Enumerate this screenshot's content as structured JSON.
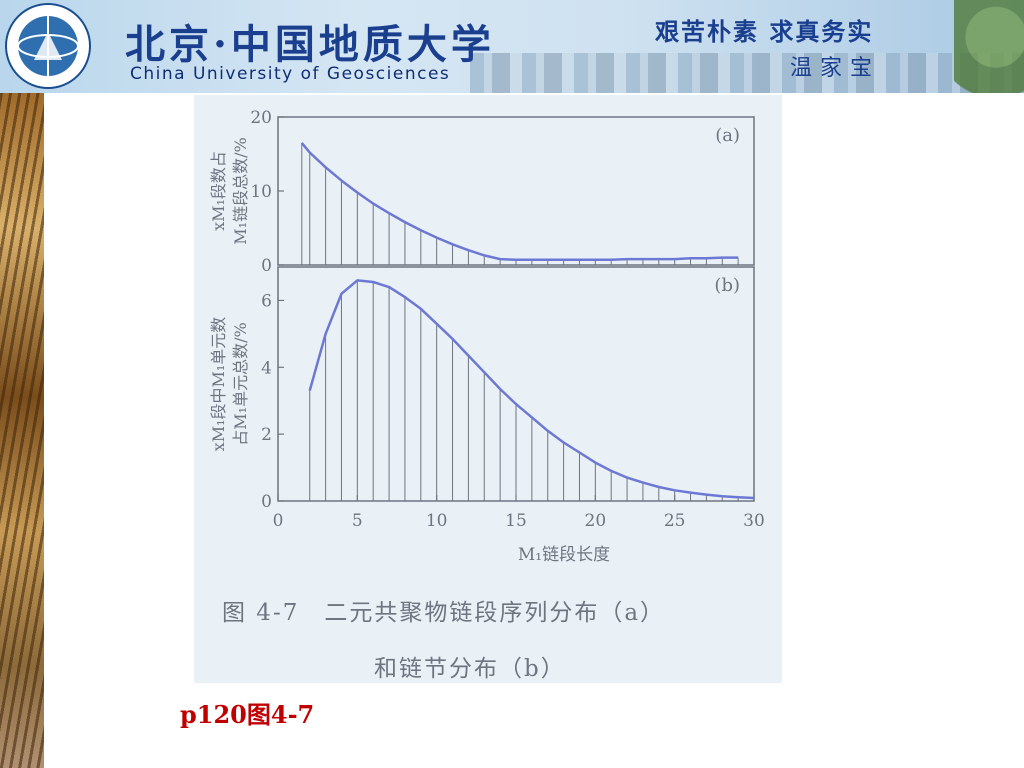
{
  "header": {
    "university_cn": "北京·中国地质大学",
    "university_en": "China University of Geosciences",
    "motto": "艰苦朴素 求真务实",
    "motto_sign": "温家宝"
  },
  "caption": {
    "line1": "图 4-7　二元共聚物链段序列分布（a）",
    "line2": "和链节分布（b）"
  },
  "page_ref": "p120图4-7",
  "colors": {
    "curve": "#6c78d4",
    "axis": "#6e7480",
    "text": "#6e7480",
    "panel_bg": "#e9f1f6",
    "page_ref": "#c00000"
  },
  "chart_data": [
    {
      "type": "area",
      "panel_label": "(a)",
      "ylabel_line1": "xM₁段数占",
      "ylabel_line2": "M₁链段总数/%",
      "ylim": [
        0,
        20
      ],
      "yticks": [
        0,
        10,
        20
      ],
      "xlim": [
        0,
        30
      ],
      "x": [
        1.5,
        2,
        3,
        4,
        5,
        6,
        7,
        8,
        9,
        10,
        11,
        12,
        13,
        14,
        15,
        16,
        17,
        18,
        19,
        20,
        21,
        22,
        23,
        24,
        25,
        26,
        27,
        28,
        29
      ],
      "y": [
        16.5,
        15.2,
        13.2,
        11.4,
        9.8,
        8.3,
        7.0,
        5.8,
        4.7,
        3.7,
        2.8,
        2.0,
        1.3,
        0.8,
        0.7,
        0.7,
        0.7,
        0.7,
        0.7,
        0.7,
        0.7,
        0.8,
        0.8,
        0.8,
        0.8,
        0.9,
        0.9,
        1.0,
        1.0
      ]
    },
    {
      "type": "area",
      "panel_label": "(b)",
      "ylabel_line1": "xM₁段中M₁单元数",
      "ylabel_line2": "占M₁单元总数/%",
      "ylim": [
        0,
        7
      ],
      "yticks": [
        0,
        2,
        4,
        6
      ],
      "xlabel": "M₁链段长度",
      "xticks": [
        0,
        5,
        10,
        15,
        20,
        25,
        30
      ],
      "xlim": [
        0,
        30
      ],
      "x": [
        2,
        3,
        4,
        5,
        6,
        7,
        8,
        9,
        10,
        11,
        12,
        13,
        14,
        15,
        16,
        17,
        18,
        19,
        20,
        21,
        22,
        23,
        24,
        25,
        26,
        27,
        28,
        29,
        30
      ],
      "y": [
        3.3,
        5.0,
        6.2,
        6.6,
        6.55,
        6.4,
        6.1,
        5.75,
        5.3,
        4.85,
        4.35,
        3.85,
        3.35,
        2.9,
        2.5,
        2.1,
        1.75,
        1.45,
        1.15,
        0.9,
        0.7,
        0.55,
        0.42,
        0.32,
        0.25,
        0.19,
        0.14,
        0.11,
        0.09
      ]
    }
  ]
}
